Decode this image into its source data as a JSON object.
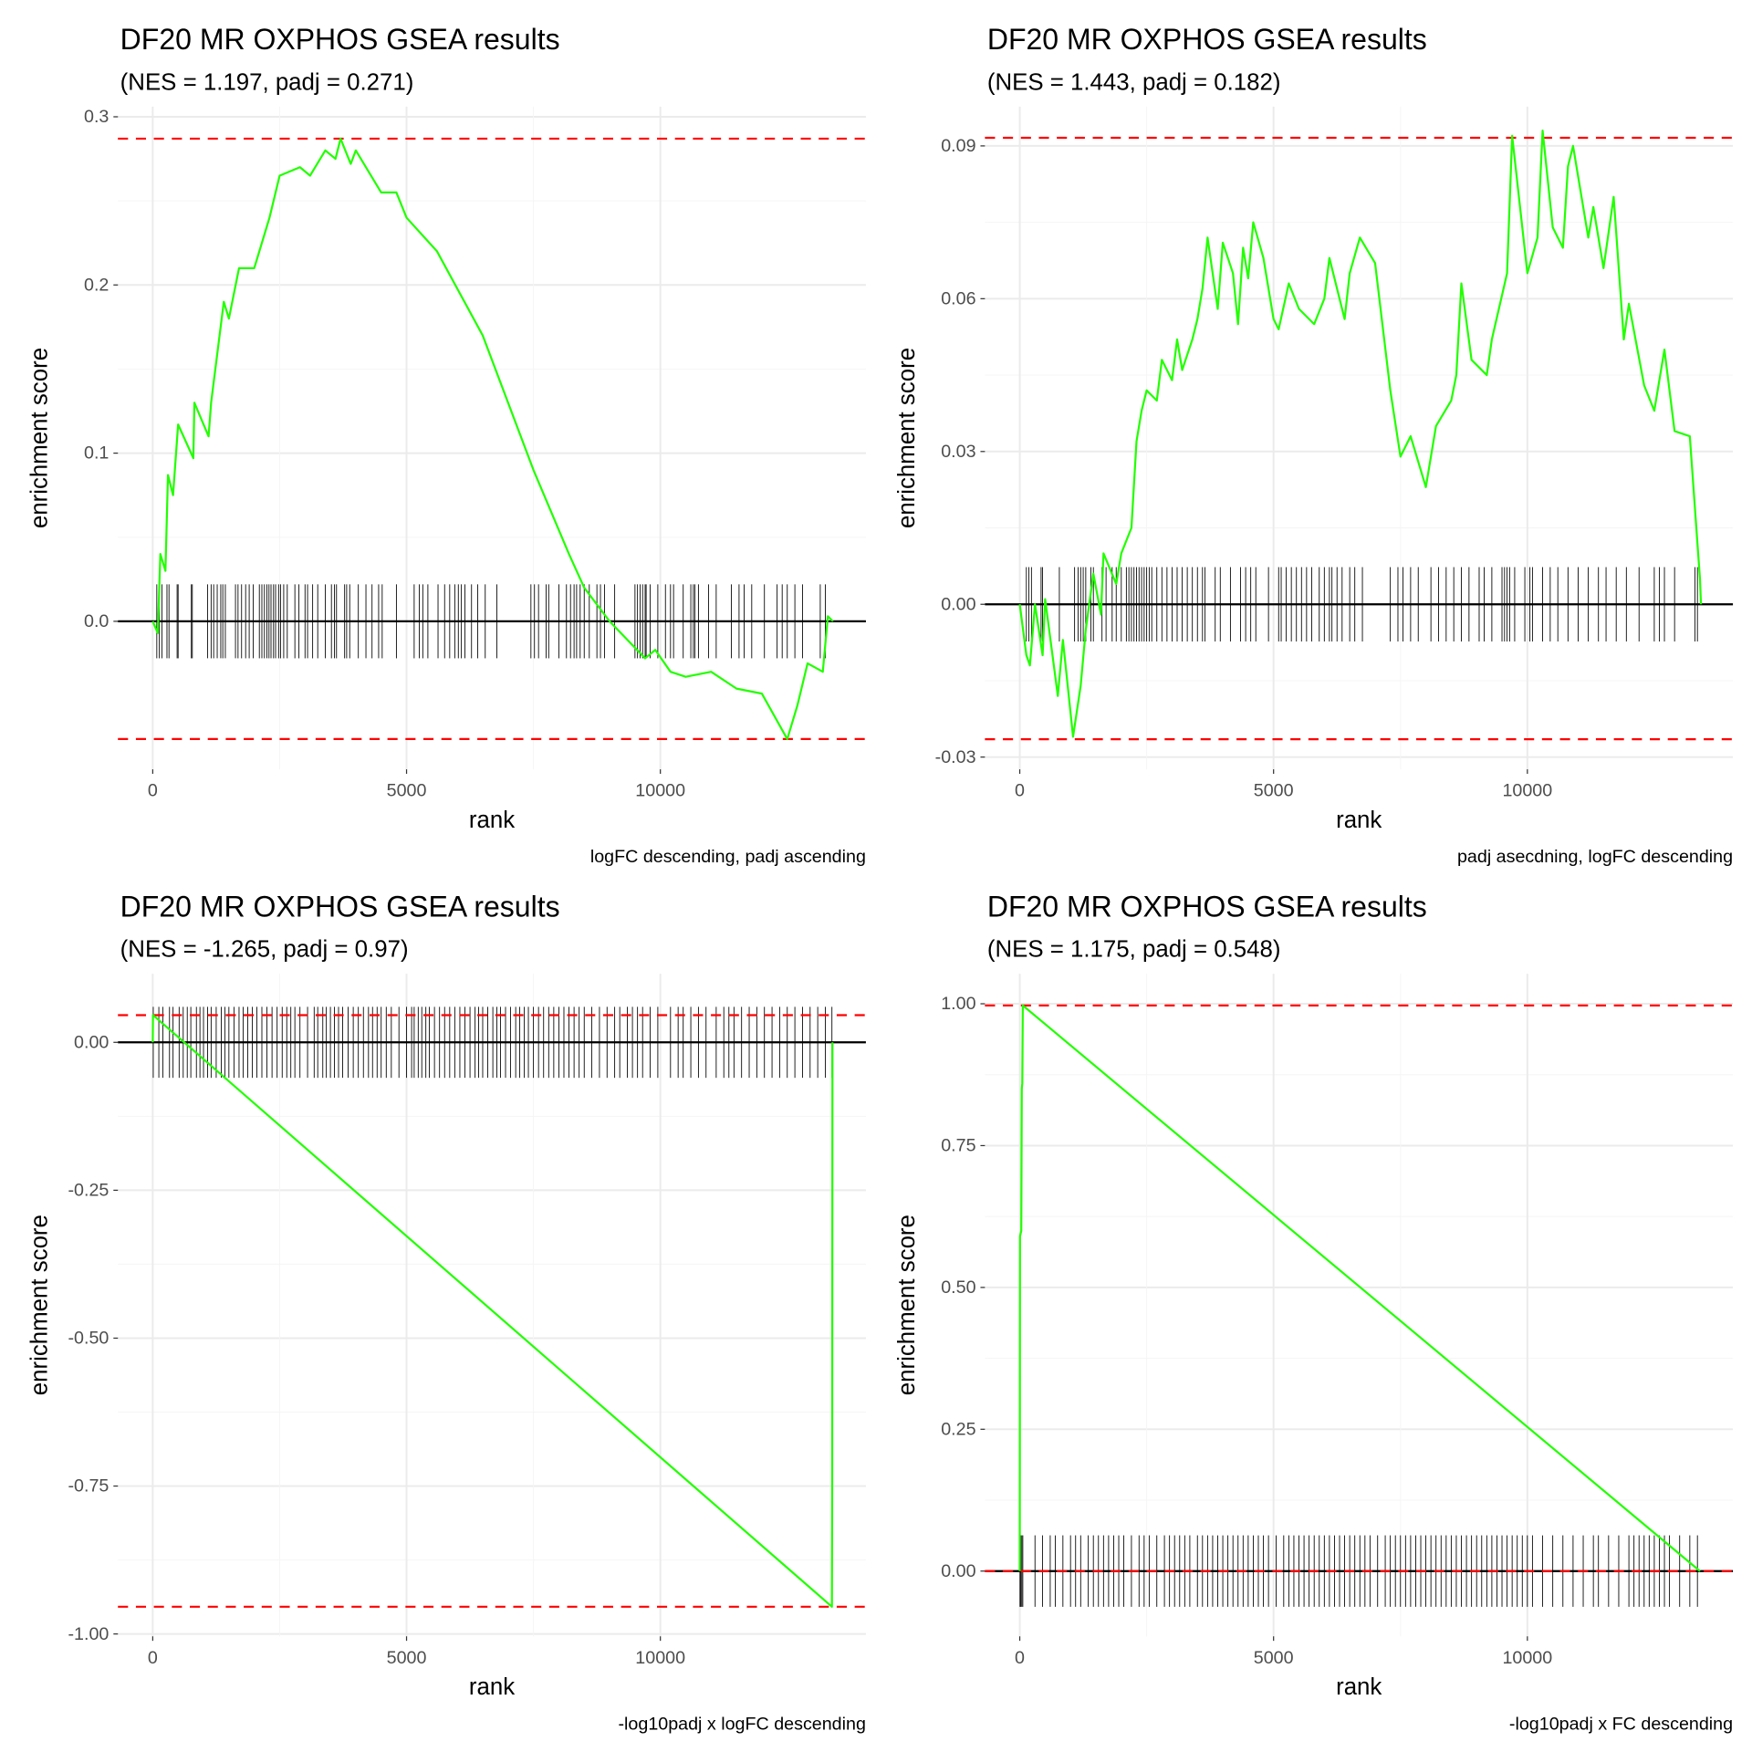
{
  "chart_data": [
    {
      "type": "line",
      "title": "DF20 MR OXPHOS GSEA results",
      "subtitle": "(NES = 1.197, padj = 0.271)",
      "xlabel": "rank",
      "ylabel": "enrichment score",
      "caption": "logFC descending, padj ascending",
      "xlim": [
        -686,
        14049
      ],
      "ylim": [
        -0.088,
        0.306
      ],
      "xticks": [
        0,
        5000,
        10000
      ],
      "xtick_labels": [
        "0",
        "5000",
        "10000"
      ],
      "yticks": [
        0.0,
        0.1,
        0.2,
        0.3
      ],
      "ytick_labels": [
        "0.0",
        "0.1",
        "0.2",
        "0.3"
      ],
      "extremes": [
        0.287,
        -0.07
      ],
      "tick_half": 0.022,
      "line_color": "#22ff00",
      "dash_color": "#ff0000",
      "curve": [
        [
          0,
          0
        ],
        [
          100,
          -0.007
        ],
        [
          150,
          0.04
        ],
        [
          250,
          0.03
        ],
        [
          300,
          0.087
        ],
        [
          400,
          0.075
        ],
        [
          500,
          0.117
        ],
        [
          800,
          0.097
        ],
        [
          820,
          0.13
        ],
        [
          1100,
          0.11
        ],
        [
          1150,
          0.13
        ],
        [
          1400,
          0.19
        ],
        [
          1500,
          0.18
        ],
        [
          1700,
          0.21
        ],
        [
          2000,
          0.21
        ],
        [
          2300,
          0.24
        ],
        [
          2500,
          0.265
        ],
        [
          2900,
          0.27
        ],
        [
          3100,
          0.265
        ],
        [
          3400,
          0.28
        ],
        [
          3600,
          0.275
        ],
        [
          3700,
          0.287
        ],
        [
          3900,
          0.272
        ],
        [
          4000,
          0.28
        ],
        [
          4500,
          0.255
        ],
        [
          4800,
          0.255
        ],
        [
          5000,
          0.24
        ],
        [
          5600,
          0.22
        ],
        [
          6500,
          0.17
        ],
        [
          7500,
          0.09
        ],
        [
          8200,
          0.04
        ],
        [
          8500,
          0.02
        ],
        [
          9000,
          0.0
        ],
        [
          9700,
          -0.022
        ],
        [
          9900,
          -0.017
        ],
        [
          10200,
          -0.03
        ],
        [
          10500,
          -0.033
        ],
        [
          11000,
          -0.03
        ],
        [
          11500,
          -0.04
        ],
        [
          12000,
          -0.043
        ],
        [
          12500,
          -0.07
        ],
        [
          12700,
          -0.05
        ],
        [
          12900,
          -0.025
        ],
        [
          13200,
          -0.03
        ],
        [
          13300,
          0.003
        ],
        [
          13400,
          0
        ]
      ],
      "hits": [
        80,
        130,
        180,
        280,
        320,
        480,
        500,
        760,
        780,
        1080,
        1150,
        1200,
        1270,
        1340,
        1380,
        1430,
        1630,
        1680,
        1750,
        1830,
        1900,
        1980,
        2100,
        2150,
        2200,
        2250,
        2290,
        2330,
        2380,
        2420,
        2480,
        2520,
        2580,
        2650,
        2800,
        2880,
        3000,
        3050,
        3150,
        3250,
        3400,
        3520,
        3580,
        3620,
        3780,
        3820,
        3880,
        4050,
        4200,
        4320,
        4450,
        4520,
        4800,
        5150,
        5250,
        5320,
        5420,
        5620,
        5750,
        5850,
        5950,
        6020,
        6080,
        6150,
        6280,
        6400,
        6550,
        6780,
        7450,
        7520,
        7600,
        7750,
        7800,
        8000,
        8150,
        8230,
        8300,
        8350,
        8420,
        8500,
        8600,
        8750,
        8820,
        8900,
        9100,
        9500,
        9550,
        9600,
        9650,
        9700,
        9720,
        9800,
        9950,
        10100,
        10200,
        10260,
        10450,
        10600,
        10650,
        10680,
        10750,
        10950,
        11100,
        11400,
        11550,
        11650,
        11800,
        12050,
        12300,
        12400,
        12500,
        12650,
        12800,
        13150,
        13250
      ]
    },
    {
      "type": "line",
      "title": "DF20 MR OXPHOS GSEA results",
      "subtitle": "(NES = 1.443, padj = 0.182)",
      "xlabel": "rank",
      "ylabel": "enrichment score",
      "caption": "padj asecdning, logFC descending",
      "xlim": [
        -686,
        14049
      ],
      "ylim": [
        -0.0324,
        0.0977
      ],
      "xticks": [
        0,
        5000,
        10000
      ],
      "xtick_labels": [
        "0",
        "5000",
        "10000"
      ],
      "yticks": [
        -0.03,
        0.0,
        0.03,
        0.06,
        0.09
      ],
      "ytick_labels": [
        "-0.03",
        "0.00",
        "0.03",
        "0.06",
        "0.09"
      ],
      "extremes": [
        0.0916,
        -0.0265
      ],
      "tick_half": 0.0073,
      "line_color": "#22ff00",
      "dash_color": "#ff0000",
      "curve": [
        [
          0,
          0
        ],
        [
          130,
          -0.01
        ],
        [
          200,
          -0.012
        ],
        [
          300,
          0.0
        ],
        [
          450,
          -0.01
        ],
        [
          500,
          0.001
        ],
        [
          750,
          -0.018
        ],
        [
          850,
          -0.007
        ],
        [
          1050,
          -0.026
        ],
        [
          1200,
          -0.016
        ],
        [
          1300,
          -0.005
        ],
        [
          1450,
          0.006
        ],
        [
          1600,
          -0.002
        ],
        [
          1650,
          0.01
        ],
        [
          1900,
          0.004
        ],
        [
          2000,
          0.01
        ],
        [
          2200,
          0.015
        ],
        [
          2300,
          0.032
        ],
        [
          2400,
          0.038
        ],
        [
          2500,
          0.042
        ],
        [
          2700,
          0.04
        ],
        [
          2800,
          0.048
        ],
        [
          3000,
          0.044
        ],
        [
          3100,
          0.052
        ],
        [
          3200,
          0.046
        ],
        [
          3400,
          0.052
        ],
        [
          3500,
          0.056
        ],
        [
          3600,
          0.062
        ],
        [
          3700,
          0.072
        ],
        [
          3900,
          0.058
        ],
        [
          4000,
          0.071
        ],
        [
          4200,
          0.065
        ],
        [
          4300,
          0.055
        ],
        [
          4400,
          0.07
        ],
        [
          4500,
          0.064
        ],
        [
          4600,
          0.075
        ],
        [
          4800,
          0.068
        ],
        [
          5000,
          0.056
        ],
        [
          5100,
          0.054
        ],
        [
          5300,
          0.063
        ],
        [
          5500,
          0.058
        ],
        [
          5800,
          0.055
        ],
        [
          6000,
          0.06
        ],
        [
          6100,
          0.068
        ],
        [
          6300,
          0.06
        ],
        [
          6400,
          0.056
        ],
        [
          6500,
          0.065
        ],
        [
          6700,
          0.072
        ],
        [
          7000,
          0.067
        ],
        [
          7300,
          0.042
        ],
        [
          7500,
          0.029
        ],
        [
          7700,
          0.033
        ],
        [
          8000,
          0.023
        ],
        [
          8200,
          0.035
        ],
        [
          8500,
          0.04
        ],
        [
          8600,
          0.045
        ],
        [
          8700,
          0.063
        ],
        [
          8900,
          0.048
        ],
        [
          9200,
          0.045
        ],
        [
          9300,
          0.052
        ],
        [
          9600,
          0.065
        ],
        [
          9700,
          0.092
        ],
        [
          10000,
          0.065
        ],
        [
          10200,
          0.072
        ],
        [
          10300,
          0.093
        ],
        [
          10500,
          0.074
        ],
        [
          10700,
          0.07
        ],
        [
          10800,
          0.086
        ],
        [
          10900,
          0.09
        ],
        [
          11200,
          0.072
        ],
        [
          11300,
          0.078
        ],
        [
          11500,
          0.066
        ],
        [
          11700,
          0.08
        ],
        [
          11900,
          0.052
        ],
        [
          12000,
          0.059
        ],
        [
          12300,
          0.043
        ],
        [
          12500,
          0.038
        ],
        [
          12700,
          0.05
        ],
        [
          12900,
          0.034
        ],
        [
          13200,
          0.033
        ],
        [
          13400,
          0.005
        ],
        [
          13420,
          0.0
        ]
      ],
      "hits": [
        130,
        180,
        230,
        420,
        450,
        780,
        1080,
        1150,
        1200,
        1250,
        1300,
        1400,
        1450,
        1620,
        1700,
        1820,
        1900,
        2000,
        2100,
        2150,
        2200,
        2250,
        2300,
        2350,
        2400,
        2450,
        2500,
        2550,
        2600,
        2700,
        2800,
        2900,
        3000,
        3100,
        3200,
        3300,
        3400,
        3500,
        3600,
        3650,
        3850,
        3950,
        4150,
        4350,
        4450,
        4550,
        4650,
        4900,
        5100,
        5150,
        5250,
        5350,
        5450,
        5550,
        5650,
        5750,
        5900,
        6000,
        6100,
        6150,
        6250,
        6350,
        6500,
        6600,
        6750,
        7300,
        7450,
        7550,
        7700,
        7850,
        8100,
        8250,
        8400,
        8550,
        8700,
        8850,
        9050,
        9150,
        9300,
        9500,
        9550,
        9600,
        9650,
        9750,
        9950,
        10050,
        10100,
        10300,
        10450,
        10600,
        10800,
        11000,
        11200,
        11400,
        11550,
        11750,
        11950,
        12200,
        12500,
        12600,
        12700,
        12900,
        13300,
        13350
      ]
    },
    {
      "type": "line",
      "title": "DF20 MR OXPHOS GSEA results",
      "subtitle": "(NES = -1.265, padj = 0.97)",
      "xlabel": "rank",
      "ylabel": "enrichment score",
      "caption": "-log10padj x logFC descending",
      "xlim": [
        -686,
        14049
      ],
      "ylim": [
        -1.004,
        0.116
      ],
      "xticks": [
        0,
        5000,
        10000
      ],
      "xtick_labels": [
        "0",
        "5000",
        "10000"
      ],
      "yticks": [
        -1.0,
        -0.75,
        -0.5,
        -0.25,
        0.0
      ],
      "ytick_labels": [
        "-1.00",
        "-0.75",
        "-0.50",
        "-0.25",
        "0.00"
      ],
      "extremes": [
        0.046,
        -0.954
      ],
      "tick_half": 0.06,
      "line_color": "#22ff00",
      "dash_color": "#ff0000",
      "curve": [
        [
          0,
          0
        ],
        [
          5,
          0.046
        ],
        [
          13380,
          -0.954
        ],
        [
          13385,
          -0.75
        ],
        [
          13390,
          0.0
        ]
      ],
      "hits": [
        10,
        120,
        200,
        330,
        400,
        520,
        600,
        680,
        750,
        860,
        930,
        1000,
        1080,
        1150,
        1250,
        1350,
        1420,
        1500,
        1600,
        1700,
        1780,
        1870,
        1960,
        2050,
        2150,
        2250,
        2350,
        2450,
        2550,
        2640,
        2720,
        2800,
        2900,
        3050,
        3180,
        3250,
        3350,
        3420,
        3500,
        3580,
        3660,
        3740,
        3850,
        3950,
        4050,
        4150,
        4250,
        4330,
        4420,
        4500,
        4600,
        4700,
        4850,
        5000,
        5100,
        5150,
        5230,
        5300,
        5380,
        5450,
        5550,
        5650,
        5750,
        5850,
        5950,
        6050,
        6150,
        6250,
        6350,
        6420,
        6500,
        6600,
        6700,
        6780,
        6850,
        6950,
        7050,
        7150,
        7230,
        7320,
        7400,
        7500,
        7600,
        7700,
        7800,
        7900,
        8000,
        8100,
        8200,
        8300,
        8400,
        8500,
        8650,
        8800,
        8950,
        9100,
        9200,
        9350,
        9450,
        9550,
        9650,
        9800,
        9950,
        10200,
        10350,
        10450,
        10600,
        10750,
        10900,
        11100,
        11250,
        11350,
        11450,
        11600,
        11750,
        11900,
        12050,
        12200,
        12350,
        12500,
        12650,
        12800,
        12950,
        13100,
        13250,
        13380
      ]
    },
    {
      "type": "line",
      "title": "DF20 MR OXPHOS GSEA results",
      "subtitle": "(NES = 1.175, padj = 0.548)",
      "xlabel": "rank",
      "ylabel": "enrichment score",
      "caption": "-log10padj x FC descending",
      "xlim": [
        -686,
        14049
      ],
      "ylim": [
        -0.115,
        1.053
      ],
      "xticks": [
        0,
        5000,
        10000
      ],
      "xtick_labels": [
        "0",
        "5000",
        "10000"
      ],
      "yticks": [
        0.0,
        0.25,
        0.5,
        0.75,
        1.0
      ],
      "ytick_labels": [
        "0.00",
        "0.25",
        "0.50",
        "0.75",
        "1.00"
      ],
      "extremes": [
        0.997,
        0.0
      ],
      "tick_half": 0.063,
      "line_color": "#22ff00",
      "dash_color": "#ff0000",
      "curve": [
        [
          0,
          0
        ],
        [
          5,
          0.59
        ],
        [
          30,
          0.6
        ],
        [
          40,
          0.85
        ],
        [
          50,
          0.86
        ],
        [
          60,
          0.997
        ],
        [
          13400,
          0.0
        ]
      ],
      "hits": [
        5,
        20,
        40,
        60,
        300,
        450,
        600,
        700,
        850,
        1000,
        1100,
        1200,
        1350,
        1450,
        1550,
        1650,
        1750,
        1850,
        1950,
        2050,
        2200,
        2350,
        2450,
        2550,
        2700,
        2850,
        2950,
        3050,
        3150,
        3250,
        3350,
        3500,
        3600,
        3700,
        3800,
        3900,
        4000,
        4100,
        4200,
        4300,
        4400,
        4500,
        4600,
        4700,
        4800,
        4900,
        5050,
        5200,
        5300,
        5400,
        5500,
        5600,
        5700,
        5800,
        5900,
        6000,
        6100,
        6200,
        6300,
        6400,
        6500,
        6600,
        6700,
        6800,
        6900,
        7050,
        7200,
        7300,
        7400,
        7500,
        7600,
        7700,
        7800,
        7900,
        8000,
        8100,
        8200,
        8300,
        8400,
        8500,
        8600,
        8700,
        8800,
        8900,
        9000,
        9100,
        9200,
        9300,
        9400,
        9500,
        9600,
        9700,
        9800,
        9900,
        10000,
        10100,
        10300,
        10500,
        10700,
        10900,
        11100,
        11300,
        11400,
        11600,
        11800,
        12000,
        12100,
        12200,
        12300,
        12400,
        12500,
        12600,
        12700,
        12800,
        13000,
        13200,
        13350
      ]
    }
  ]
}
